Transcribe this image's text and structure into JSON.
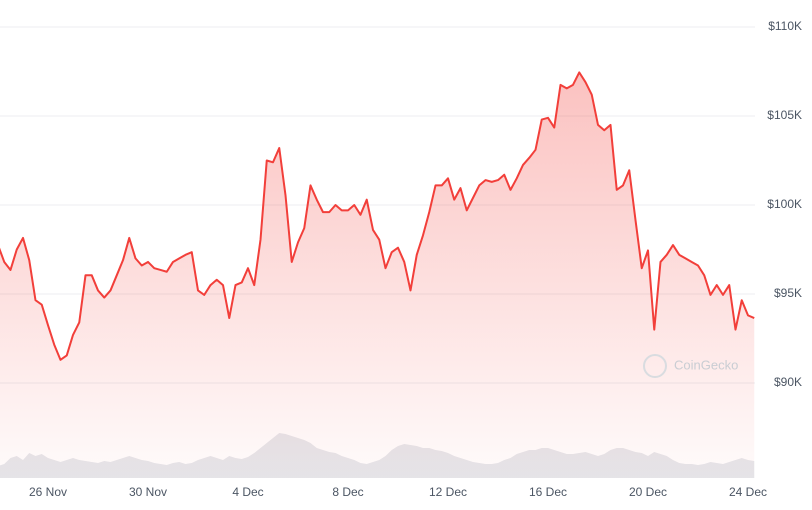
{
  "chart_data": {
    "type": "area",
    "categories": [
      null,
      null,
      null,
      null,
      null,
      null,
      null,
      null,
      "26 Nov",
      null,
      null,
      null,
      null,
      null,
      null,
      null,
      null,
      null,
      null,
      null,
      null,
      null,
      null,
      null,
      "30 Nov",
      null,
      null,
      null,
      null,
      null,
      null,
      null,
      null,
      null,
      null,
      null,
      null,
      null,
      null,
      null,
      "4 Dec",
      null,
      null,
      null,
      null,
      null,
      null,
      null,
      null,
      null,
      null,
      null,
      null,
      null,
      null,
      null,
      "8 Dec",
      null,
      null,
      null,
      null,
      null,
      null,
      null,
      null,
      null,
      null,
      null,
      null,
      null,
      null,
      null,
      "12 Dec",
      null,
      null,
      null,
      null,
      null,
      null,
      null,
      null,
      null,
      null,
      null,
      null,
      null,
      null,
      null,
      "16 Dec",
      null,
      null,
      null,
      null,
      null,
      null,
      null,
      null,
      null,
      null,
      null,
      null,
      null,
      null,
      null,
      "20 Dec",
      null,
      null,
      null,
      null,
      null,
      null,
      null,
      null,
      null,
      null,
      null,
      null,
      null,
      null,
      null,
      "24 Dec",
      null
    ],
    "values": [
      97750,
      96800,
      96350,
      97500,
      98150,
      96900,
      94650,
      94400,
      93250,
      92150,
      91300,
      91550,
      92700,
      93400,
      96050,
      96050,
      95200,
      94800,
      95200,
      96050,
      96900,
      98150,
      97000,
      96600,
      96800,
      96450,
      96350,
      96250,
      96800,
      97000,
      97200,
      97350,
      95200,
      94950,
      95500,
      95800,
      95500,
      93650,
      95500,
      95650,
      96450,
      95500,
      98050,
      102500,
      102400,
      103200,
      100550,
      96800,
      97900,
      98700,
      101100,
      100300,
      99600,
      99600,
      100000,
      99700,
      99700,
      100000,
      99450,
      100300,
      98600,
      98050,
      96450,
      97350,
      97600,
      96800,
      95200,
      97200,
      98300,
      99600,
      101100,
      101100,
      101500,
      100300,
      100950,
      99700,
      100400,
      101100,
      101400,
      101300,
      101400,
      101700,
      100850,
      101500,
      102250,
      102650,
      103100,
      104800,
      104900,
      104350,
      106750,
      106550,
      106750,
      107450,
      106900,
      106200,
      104500,
      104200,
      104500,
      100850,
      101100,
      101950,
      99150,
      96450,
      97450,
      93000,
      96800,
      97200,
      97750,
      97200,
      97000,
      96800,
      96600,
      96050,
      94950,
      95500,
      94950,
      95500,
      93000,
      94650,
      93800,
      93650
    ],
    "color": "#f23f3a",
    "volume": [
      12,
      14,
      20,
      22,
      18,
      25,
      22,
      24,
      20,
      18,
      16,
      18,
      20,
      18,
      17,
      16,
      15,
      17,
      16,
      18,
      20,
      22,
      20,
      18,
      17,
      15,
      14,
      13,
      15,
      16,
      14,
      15,
      18,
      20,
      22,
      20,
      18,
      22,
      20,
      19,
      21,
      25,
      30,
      35,
      40,
      45,
      44,
      42,
      40,
      38,
      35,
      30,
      28,
      26,
      25,
      22,
      20,
      18,
      15,
      14,
      16,
      18,
      22,
      28,
      32,
      34,
      33,
      32,
      30,
      30,
      28,
      27,
      25,
      22,
      20,
      18,
      16,
      15,
      14,
      14,
      15,
      18,
      20,
      24,
      26,
      28,
      28,
      30,
      30,
      28,
      26,
      24,
      24,
      25,
      26,
      24,
      22,
      24,
      28,
      30,
      30,
      28,
      26,
      25,
      22,
      26,
      24,
      22,
      18,
      15,
      14,
      14,
      13,
      14,
      16,
      15,
      14,
      16,
      18,
      20,
      18,
      17
    ],
    "volume_ylim": [
      0,
      100
    ],
    "volume_color": "#e5e7eb",
    "ylim": [
      90000,
      110000
    ],
    "yticks": [
      {
        "value": 90000,
        "label": "$90K"
      },
      {
        "value": 95000,
        "label": "$95K"
      },
      {
        "value": 100000,
        "label": "$100K"
      },
      {
        "value": 105000,
        "label": "$105K"
      },
      {
        "value": 110000,
        "label": "$110K"
      }
    ],
    "grid": true,
    "watermark": "CoinGecko"
  }
}
